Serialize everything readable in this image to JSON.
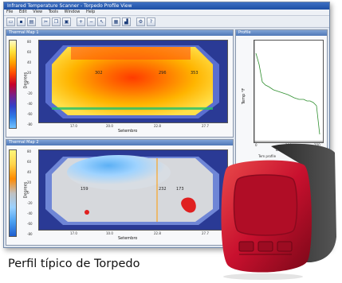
{
  "window": {
    "title": "Infrared Temperature Scanner - Torpedo Profile View",
    "menu": [
      "File",
      "Edit",
      "View",
      "Tools",
      "Window",
      "Help"
    ],
    "toolbar_icons": [
      "open-icon",
      "save-icon",
      "print-icon",
      "cut-icon",
      "copy-icon",
      "paste-icon",
      "zoom-in-icon",
      "zoom-out-icon",
      "cursor-icon",
      "grid-icon",
      "chart-icon",
      "settings-icon",
      "help-icon"
    ]
  },
  "top_pane": {
    "title": "Thermal Map 1",
    "ylabel": "Degrees",
    "xlabel": "Setembro",
    "yticks": [
      "80",
      "60",
      "40",
      "20",
      "0",
      "-20",
      "-40",
      "-60",
      "-80"
    ],
    "xticks": [
      "17.0",
      "20.0",
      "22.8",
      "27.7"
    ],
    "hot_labels": [
      "302",
      "296",
      "353"
    ]
  },
  "bottom_pane": {
    "title": "Thermal Map 2",
    "ylabel": "Degrees",
    "xlabel": "Setembro",
    "yticks": [
      "80",
      "60",
      "40",
      "20",
      "0",
      "-20",
      "-40",
      "-60",
      "-80"
    ],
    "xticks": [
      "17.0",
      "10.0",
      "22.8",
      "27.7"
    ],
    "labels": [
      "159",
      "232",
      "173"
    ]
  },
  "right_pane": {
    "title": "Profile",
    "ylabel": "Temp °F",
    "xlabel": "Degrees",
    "legend": "Tem profile",
    "yticks": [
      "900",
      "800",
      "700",
      "600",
      "500",
      "400",
      "300",
      "200",
      "100",
      "0"
    ],
    "xticks": [
      "0",
      "100",
      "200"
    ]
  },
  "caption": "Perfil típico de Torpedo",
  "colors": {
    "title_bar": "#2a5cb3",
    "device_red": "#c8102e"
  }
}
